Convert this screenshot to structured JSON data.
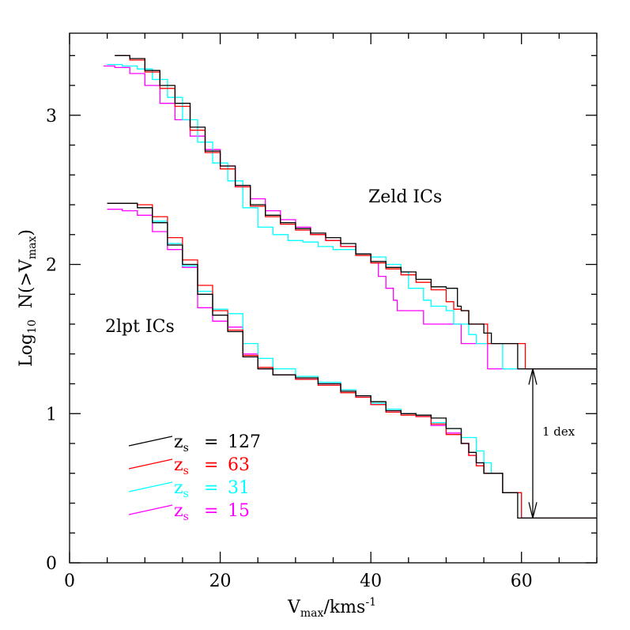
{
  "chart_data": {
    "type": "line",
    "xlabel": {
      "main": "V",
      "sub": "max",
      "rest": "/kms",
      "sup": "-1"
    },
    "ylabel": {
      "pre": "Log",
      "sub1": "10",
      "mid": "  N(>V",
      "sub2": "max",
      "post": ")"
    },
    "xlim": [
      0,
      70
    ],
    "ylim": [
      0,
      3.55
    ],
    "x_ticks": [
      0,
      20,
      40,
      60
    ],
    "y_ticks": [
      0,
      1,
      2,
      3
    ],
    "grid": false,
    "legend_position": "lower-left",
    "annotations": {
      "zeld_label": "Zeld ICs",
      "twolpt_label": "2lpt ICs",
      "dex_label": "1 dex"
    },
    "legend_prefix": "z",
    "legend_sub": "s",
    "series": [
      {
        "name": "127",
        "color": "#000000",
        "zeld": [
          [
            6,
            3.4
          ],
          [
            8,
            3.38
          ],
          [
            10,
            3.3
          ],
          [
            12,
            3.2
          ],
          [
            14,
            3.08
          ],
          [
            16,
            2.92
          ],
          [
            18,
            2.76
          ],
          [
            20,
            2.66
          ],
          [
            22,
            2.53
          ],
          [
            24,
            2.4
          ],
          [
            26,
            2.33
          ],
          [
            28,
            2.28
          ],
          [
            30,
            2.24
          ],
          [
            32,
            2.21
          ],
          [
            34,
            2.18
          ],
          [
            36,
            2.14
          ],
          [
            38,
            2.07
          ],
          [
            40,
            2.02
          ],
          [
            42,
            1.98
          ],
          [
            44,
            1.95
          ],
          [
            46,
            1.9
          ],
          [
            48,
            1.85
          ],
          [
            50,
            1.84
          ],
          [
            51.5,
            1.72
          ],
          [
            52,
            1.69
          ],
          [
            53,
            1.6
          ],
          [
            54,
            1.6
          ],
          [
            55,
            1.54
          ],
          [
            56,
            1.47
          ],
          [
            59,
            1.47
          ],
          [
            59.5,
            1.3
          ],
          [
            70,
            1.3
          ]
        ],
        "lpt": [
          [
            5,
            2.41
          ],
          [
            7,
            2.41
          ],
          [
            9,
            2.38
          ],
          [
            11,
            2.28
          ],
          [
            13,
            2.13
          ],
          [
            15,
            2.0
          ],
          [
            17,
            1.8
          ],
          [
            19,
            1.66
          ],
          [
            21,
            1.55
          ],
          [
            23,
            1.38
          ],
          [
            25,
            1.3
          ],
          [
            27,
            1.26
          ],
          [
            30,
            1.24
          ],
          [
            33,
            1.2
          ],
          [
            36,
            1.15
          ],
          [
            38,
            1.12
          ],
          [
            40,
            1.08
          ],
          [
            42,
            1.02
          ],
          [
            44,
            1.0
          ],
          [
            46,
            0.99
          ],
          [
            48,
            0.97
          ],
          [
            50,
            0.9
          ],
          [
            52,
            0.8
          ],
          [
            53,
            0.74
          ],
          [
            54,
            0.67
          ],
          [
            55,
            0.6
          ],
          [
            56,
            0.6
          ],
          [
            57,
            0.6
          ],
          [
            57.5,
            0.47
          ],
          [
            59,
            0.47
          ],
          [
            59.5,
            0.3
          ],
          [
            70,
            0.3
          ]
        ]
      },
      {
        "name": "63",
        "color": "#ff0000",
        "zeld": [
          [
            6,
            3.4
          ],
          [
            8,
            3.37
          ],
          [
            10,
            3.29
          ],
          [
            12,
            3.18
          ],
          [
            14,
            3.06
          ],
          [
            16,
            2.9
          ],
          [
            18,
            2.75
          ],
          [
            20,
            2.64
          ],
          [
            22,
            2.52
          ],
          [
            24,
            2.39
          ],
          [
            26,
            2.32
          ],
          [
            28,
            2.27
          ],
          [
            30,
            2.23
          ],
          [
            32,
            2.2
          ],
          [
            34,
            2.16
          ],
          [
            36,
            2.12
          ],
          [
            38,
            2.06
          ],
          [
            40,
            2.01
          ],
          [
            42,
            1.97
          ],
          [
            44,
            1.93
          ],
          [
            46,
            1.88
          ],
          [
            48,
            1.83
          ],
          [
            50,
            1.75
          ],
          [
            51,
            1.7
          ],
          [
            52,
            1.69
          ],
          [
            53,
            1.6
          ],
          [
            55,
            1.6
          ],
          [
            55.5,
            1.47
          ],
          [
            60,
            1.47
          ],
          [
            60.5,
            1.3
          ],
          [
            70,
            1.3
          ]
        ],
        "lpt": [
          [
            5,
            2.41
          ],
          [
            7,
            2.41
          ],
          [
            9,
            2.4
          ],
          [
            11,
            2.32
          ],
          [
            13,
            2.18
          ],
          [
            15,
            2.03
          ],
          [
            17,
            1.86
          ],
          [
            19,
            1.69
          ],
          [
            21,
            1.56
          ],
          [
            23,
            1.39
          ],
          [
            25,
            1.31
          ],
          [
            27,
            1.26
          ],
          [
            30,
            1.23
          ],
          [
            33,
            1.19
          ],
          [
            36,
            1.14
          ],
          [
            38,
            1.11
          ],
          [
            40,
            1.06
          ],
          [
            42,
            1.01
          ],
          [
            44,
            0.99
          ],
          [
            46,
            0.98
          ],
          [
            48,
            0.93
          ],
          [
            50,
            0.86
          ],
          [
            52,
            0.8
          ],
          [
            53,
            0.72
          ],
          [
            54,
            0.65
          ],
          [
            55,
            0.6
          ],
          [
            56,
            0.6
          ],
          [
            57,
            0.6
          ],
          [
            57.5,
            0.47
          ],
          [
            59.5,
            0.47
          ],
          [
            60,
            0.3
          ],
          [
            70,
            0.3
          ]
        ]
      },
      {
        "name": "31",
        "color": "#00ffff",
        "zeld": [
          [
            5,
            3.34
          ],
          [
            7,
            3.33
          ],
          [
            9,
            3.31
          ],
          [
            11,
            3.24
          ],
          [
            13,
            3.12
          ],
          [
            15,
            2.97
          ],
          [
            17,
            2.82
          ],
          [
            19,
            2.68
          ],
          [
            21,
            2.56
          ],
          [
            23,
            2.38
          ],
          [
            25,
            2.25
          ],
          [
            27,
            2.2
          ],
          [
            29,
            2.16
          ],
          [
            31,
            2.15
          ],
          [
            33,
            2.12
          ],
          [
            35,
            2.1
          ],
          [
            38,
            2.07
          ],
          [
            40,
            2.05
          ],
          [
            42,
            2.0
          ],
          [
            44,
            1.95
          ],
          [
            45,
            1.84
          ],
          [
            46,
            1.84
          ],
          [
            47,
            1.76
          ],
          [
            48,
            1.72
          ],
          [
            50,
            1.69
          ],
          [
            51,
            1.6
          ],
          [
            52,
            1.6
          ],
          [
            53,
            1.53
          ],
          [
            54,
            1.47
          ],
          [
            57,
            1.47
          ],
          [
            57.5,
            1.3
          ],
          [
            70,
            1.3
          ]
        ],
        "lpt": [
          [
            5,
            2.41
          ],
          [
            7,
            2.41
          ],
          [
            9,
            2.38
          ],
          [
            11,
            2.29
          ],
          [
            13,
            2.14
          ],
          [
            15,
            1.99
          ],
          [
            17,
            1.82
          ],
          [
            19,
            1.7
          ],
          [
            21,
            1.67
          ],
          [
            23,
            1.47
          ],
          [
            25,
            1.37
          ],
          [
            27,
            1.3
          ],
          [
            30,
            1.25
          ],
          [
            33,
            1.21
          ],
          [
            36,
            1.16
          ],
          [
            38,
            1.12
          ],
          [
            40,
            1.07
          ],
          [
            42,
            1.03
          ],
          [
            44,
            1.0
          ],
          [
            46,
            0.99
          ],
          [
            48,
            0.94
          ],
          [
            50,
            0.9
          ],
          [
            52,
            0.84
          ],
          [
            54,
            0.75
          ],
          [
            55,
            0.67
          ],
          [
            56,
            0.6
          ],
          [
            57,
            0.6
          ],
          [
            57.5,
            0.47
          ],
          [
            59.5,
            0.47
          ],
          [
            60,
            0.3
          ],
          [
            70,
            0.3
          ]
        ]
      },
      {
        "name": "15",
        "color": "#ff00ff",
        "zeld": [
          [
            4.5,
            3.33
          ],
          [
            6,
            3.32
          ],
          [
            8,
            3.28
          ],
          [
            10,
            3.2
          ],
          [
            12,
            3.08
          ],
          [
            14,
            2.97
          ],
          [
            16,
            2.86
          ],
          [
            18,
            2.77
          ],
          [
            20,
            2.66
          ],
          [
            22,
            2.52
          ],
          [
            24,
            2.44
          ],
          [
            26,
            2.36
          ],
          [
            28,
            2.3
          ],
          [
            30,
            2.25
          ],
          [
            32,
            2.2
          ],
          [
            34,
            2.16
          ],
          [
            36,
            2.12
          ],
          [
            38,
            2.07
          ],
          [
            40,
            2.01
          ],
          [
            41,
            1.92
          ],
          [
            42,
            1.84
          ],
          [
            43,
            1.76
          ],
          [
            43.5,
            1.69
          ],
          [
            45,
            1.69
          ],
          [
            47,
            1.6
          ],
          [
            51,
            1.6
          ],
          [
            52,
            1.47
          ],
          [
            55,
            1.47
          ],
          [
            55.5,
            1.3
          ],
          [
            70,
            1.3
          ]
        ],
        "lpt": [
          [
            5,
            2.37
          ],
          [
            7,
            2.36
          ],
          [
            9,
            2.33
          ],
          [
            11,
            2.22
          ],
          [
            13,
            2.1
          ],
          [
            15,
            1.98
          ],
          [
            17,
            1.71
          ],
          [
            19,
            1.62
          ],
          [
            21,
            1.58
          ],
          [
            23,
            1.4
          ],
          [
            25,
            1.3
          ],
          [
            27,
            1.26
          ],
          [
            30,
            1.23
          ],
          [
            33,
            1.2
          ],
          [
            36,
            1.16
          ],
          [
            38,
            1.11
          ],
          [
            40,
            1.06
          ],
          [
            42,
            1.01
          ],
          [
            44,
            1.0
          ],
          [
            46,
            0.98
          ],
          [
            48,
            0.92
          ],
          [
            50,
            0.87
          ],
          [
            52,
            0.8
          ],
          [
            53,
            0.72
          ],
          [
            54,
            0.67
          ],
          [
            55,
            0.6
          ],
          [
            57,
            0.6
          ],
          [
            57.5,
            0.47
          ],
          [
            59.5,
            0.47
          ],
          [
            60,
            0.3
          ],
          [
            70,
            0.3
          ]
        ]
      }
    ],
    "dex_arrow": {
      "x": 61.5,
      "y_top": 1.3,
      "y_bottom": 0.3
    }
  }
}
